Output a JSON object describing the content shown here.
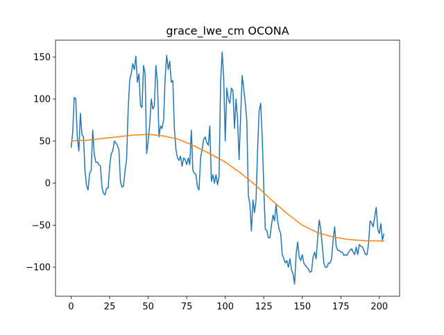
{
  "chart_data": {
    "type": "line",
    "title": "grace_lwe_cm OCONA",
    "x": [
      0,
      1,
      2,
      3,
      4,
      5,
      6,
      7,
      8,
      9,
      10,
      11,
      12,
      13,
      14,
      15,
      16,
      17,
      18,
      19,
      20,
      21,
      22,
      23,
      24,
      25,
      26,
      27,
      28,
      29,
      30,
      31,
      32,
      33,
      34,
      35,
      36,
      37,
      38,
      39,
      40,
      41,
      42,
      43,
      44,
      45,
      46,
      47,
      48,
      49,
      50,
      51,
      52,
      53,
      54,
      55,
      56,
      57,
      58,
      59,
      60,
      61,
      62,
      63,
      64,
      65,
      66,
      67,
      68,
      69,
      70,
      71,
      72,
      73,
      74,
      75,
      76,
      77,
      78,
      79,
      80,
      81,
      82,
      83,
      84,
      85,
      86,
      87,
      88,
      89,
      90,
      91,
      92,
      93,
      94,
      95,
      96,
      97,
      98,
      99,
      100,
      101,
      102,
      103,
      104,
      105,
      106,
      107,
      108,
      109,
      110,
      111,
      112,
      113,
      114,
      115,
      116,
      117,
      118,
      119,
      120,
      121,
      122,
      123,
      124,
      125,
      126,
      127,
      128,
      129,
      130,
      131,
      132,
      133,
      134,
      135,
      136,
      137,
      138,
      139,
      140,
      141,
      142,
      143,
      144,
      145,
      146,
      147,
      148,
      149,
      150,
      151,
      152,
      153,
      154,
      155,
      156,
      157,
      158,
      159,
      160,
      161,
      162,
      163,
      164,
      165,
      166,
      167,
      168,
      169,
      170,
      171,
      172,
      173,
      174,
      175,
      176,
      177,
      178,
      179,
      180,
      181,
      182,
      183,
      184,
      185,
      186,
      187,
      188,
      189,
      190,
      191,
      192,
      193,
      194,
      195,
      196,
      197,
      198,
      199,
      200,
      201,
      202,
      203
    ],
    "series": [
      {
        "color": "#1f77b4",
        "values": [
          42,
          60,
          102,
          100,
          55,
          38,
          83,
          58,
          55,
          15,
          -3,
          -8,
          12,
          15,
          63,
          35,
          25,
          25,
          22,
          20,
          -5,
          -12,
          -14,
          -6,
          -6,
          20,
          35,
          38,
          50,
          48,
          45,
          40,
          2,
          -5,
          -3,
          15,
          28,
          88,
          122,
          130,
          142,
          135,
          151,
          120,
          130,
          92,
          90,
          140,
          130,
          35,
          50,
          70,
          100,
          88,
          92,
          140,
          120,
          55,
          68,
          65,
          75,
          125,
          152,
          135,
          145,
          120,
          122,
          65,
          40,
          30,
          27,
          32,
          20,
          30,
          28,
          22,
          30,
          22,
          63,
          15,
          12,
          10,
          -5,
          -8,
          30,
          40,
          52,
          55,
          48,
          45,
          68,
          2,
          10,
          0,
          10,
          -2,
          8,
          120,
          156,
          125,
          50,
          113,
          100,
          95,
          113,
          110,
          65,
          100,
          75,
          28,
          80,
          128,
          112,
          95,
          75,
          -15,
          -25,
          -57,
          -20,
          -35,
          -20,
          40,
          86,
          95,
          55,
          -5,
          -55,
          -56,
          -65,
          -65,
          -50,
          -38,
          -45,
          -25,
          -45,
          -55,
          -60,
          -85,
          -90,
          -95,
          -92,
          -100,
          -90,
          -103,
          -108,
          -120,
          -85,
          -70,
          -88,
          -92,
          -85,
          -95,
          -98,
          -100,
          -102,
          -106,
          -105,
          -88,
          -82,
          -90,
          -65,
          -44,
          -55,
          -75,
          -95,
          -100,
          -100,
          -95,
          -95,
          -90,
          -68,
          -52,
          -75,
          -80,
          -80,
          -82,
          -82,
          -86,
          -85,
          -86,
          -82,
          -80,
          -78,
          -82,
          -85,
          -76,
          -85,
          -73,
          -75,
          -76,
          -80,
          -85,
          -85,
          -72,
          -45,
          -47,
          -52,
          -40,
          -29,
          -55,
          -60,
          -48,
          -68,
          -60
        ]
      },
      {
        "color": "#ff7f0e",
        "x": [
          0,
          10,
          20,
          30,
          40,
          50,
          60,
          70,
          80,
          90,
          100,
          110,
          120,
          130,
          140,
          150,
          160,
          170,
          180,
          190,
          203
        ],
        "values": [
          50,
          51,
          53,
          55,
          57,
          58,
          56,
          52,
          44,
          35,
          25,
          12,
          -3,
          -20,
          -36,
          -50,
          -59,
          -64,
          -67,
          -68.5,
          -69
        ]
      }
    ],
    "xlim": [
      -10.15,
      213.15
    ],
    "ylim": [
      -134.5,
      170
    ],
    "xticks": [
      0,
      25,
      50,
      75,
      100,
      125,
      150,
      175,
      200
    ],
    "yticks": [
      {
        "value": -100,
        "label": "−100"
      },
      {
        "value": -50,
        "label": "−50"
      },
      0,
      50,
      100,
      150
    ]
  }
}
